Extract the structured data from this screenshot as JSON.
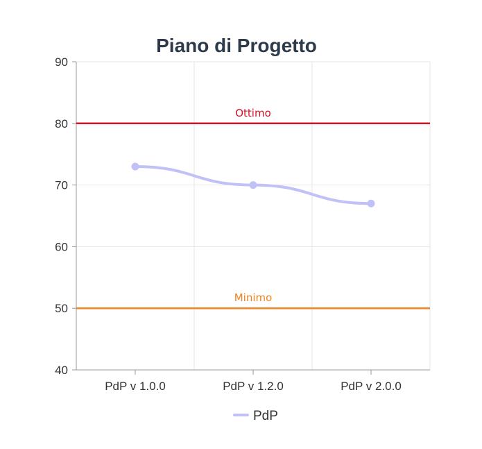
{
  "chart_data": {
    "type": "line",
    "title": "Piano di Progetto",
    "xlabel": "",
    "ylabel": "",
    "categories": [
      "PdP v 1.0.0",
      "PdP v 1.2.0",
      "PdP v 2.0.0"
    ],
    "ylim": [
      40,
      90
    ],
    "yticks": [
      40,
      50,
      60,
      70,
      80,
      90
    ],
    "grid": true,
    "legend_position": "bottom",
    "series": [
      {
        "name": "PdP",
        "values": [
          73,
          70,
          67
        ],
        "color": "#c0c1f7",
        "smooth": true
      }
    ],
    "reference_lines": [
      {
        "label": "Ottimo",
        "value": 80,
        "color": "#d01428"
      },
      {
        "label": "Minimo",
        "value": 50,
        "color": "#f08220"
      }
    ]
  }
}
